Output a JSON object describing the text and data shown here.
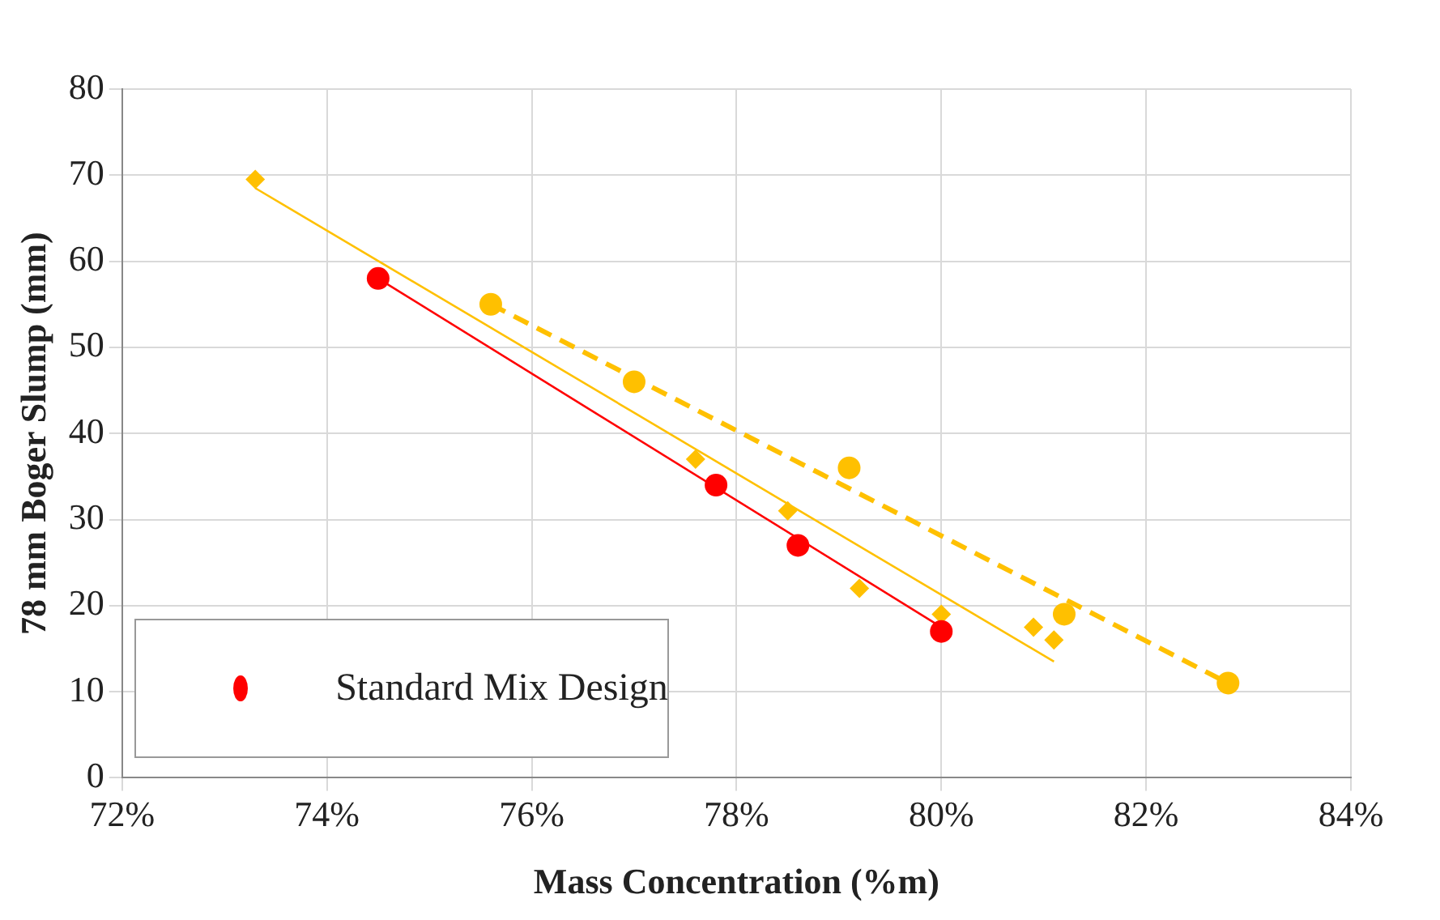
{
  "chart_data": {
    "type": "scatter",
    "xlabel": "Mass Concentration (%m)",
    "ylabel": "78 mm Boger Slump (mm)",
    "xlim": [
      72,
      84
    ],
    "xticks": [
      {
        "value": 72,
        "label": "72%"
      },
      {
        "value": 74,
        "label": "74%"
      },
      {
        "value": 76,
        "label": "76%"
      },
      {
        "value": 78,
        "label": "78%"
      },
      {
        "value": 80,
        "label": "80%"
      },
      {
        "value": 82,
        "label": "82%"
      },
      {
        "value": 84,
        "label": "84%"
      }
    ],
    "ylim": [
      0,
      80
    ],
    "yticks": [
      0,
      10,
      20,
      30,
      40,
      50,
      60,
      70,
      80
    ],
    "grid": true,
    "legend": "bottom left",
    "series": [
      {
        "name": "Standard Mix Design",
        "type": "scatter",
        "marker": "circle",
        "color": "#ff0000",
        "x": [
          74.5,
          77.8,
          78.6,
          80.0
        ],
        "values": [
          58,
          34,
          27,
          17
        ]
      },
      {
        "type": "line",
        "marker": "none",
        "line_style": "solid",
        "color": "#ff0000",
        "x": [
          74.5,
          80.0
        ],
        "values": [
          58,
          17.5
        ]
      },
      {
        "type": "scatter",
        "marker": "circle",
        "color": "#ffc000",
        "x": [
          75.6,
          77.0,
          79.1,
          81.2,
          82.8
        ],
        "values": [
          55,
          46,
          36,
          19,
          11
        ]
      },
      {
        "type": "line",
        "marker": "none",
        "line_style": "dashed",
        "color": "#ffc000",
        "x": [
          75.6,
          82.8
        ],
        "values": [
          55,
          11
        ]
      },
      {
        "type": "scatter",
        "marker": "diamond",
        "color": "#ffc000",
        "x": [
          73.3,
          77.6,
          78.5,
          79.2,
          80.0,
          80.9,
          81.1
        ],
        "values": [
          69.5,
          37,
          31,
          22,
          19,
          17.5,
          16
        ]
      },
      {
        "type": "line",
        "marker": "none",
        "line_style": "solid",
        "color": "#ffc000",
        "x": [
          73.3,
          81.1
        ],
        "values": [
          68.5,
          13.5
        ]
      }
    ]
  }
}
